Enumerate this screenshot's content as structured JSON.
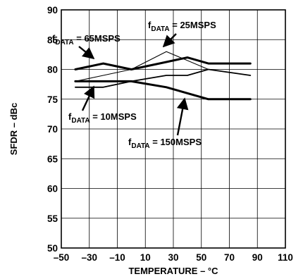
{
  "chart_data": {
    "type": "line",
    "xlabel": "TEMPERATURE – °C",
    "ylabel": "SFDR – dBc",
    "xlim": [
      -50,
      110
    ],
    "ylim": [
      50,
      90
    ],
    "xticks": [
      "–50",
      "–30",
      "–10",
      "10",
      "30",
      "50",
      "70",
      "90",
      "110"
    ],
    "yticks": [
      "50",
      "55",
      "60",
      "65",
      "70",
      "75",
      "80",
      "85",
      "90"
    ],
    "grid": true,
    "series": [
      {
        "name": "f_DATA = 65MSPS",
        "label_main": "f",
        "label_sub": "DATA",
        "label_rest": " = 65MSPS",
        "stroke": "bold",
        "x": [
          -40,
          -20,
          0,
          20,
          40,
          55,
          85
        ],
        "y": [
          80,
          81,
          80,
          81,
          82,
          81,
          81
        ]
      },
      {
        "name": "f_DATA = 25MSPS",
        "label_main": "f",
        "label_sub": "DATA",
        "label_rest": " = 25MSPS",
        "stroke": "thin",
        "x": [
          -40,
          -20,
          0,
          25,
          55,
          85
        ],
        "y": [
          78,
          79,
          80,
          83,
          80,
          79
        ]
      },
      {
        "name": "f_DATA = 10MSPS",
        "label_main": "f",
        "label_sub": "DATA",
        "label_rest": " = 10MSPS",
        "stroke": "medium",
        "x": [
          -40,
          -20,
          0,
          25,
          40,
          55,
          85
        ],
        "y": [
          77,
          77,
          78,
          79,
          79,
          80,
          79
        ]
      },
      {
        "name": "f_DATA = 150MSPS",
        "label_main": "f",
        "label_sub": "DATA",
        "label_rest": " = 150MSPS",
        "stroke": "bold",
        "x": [
          -40,
          -20,
          0,
          25,
          55,
          85
        ],
        "y": [
          78,
          78,
          78,
          77,
          75,
          75
        ]
      }
    ]
  }
}
